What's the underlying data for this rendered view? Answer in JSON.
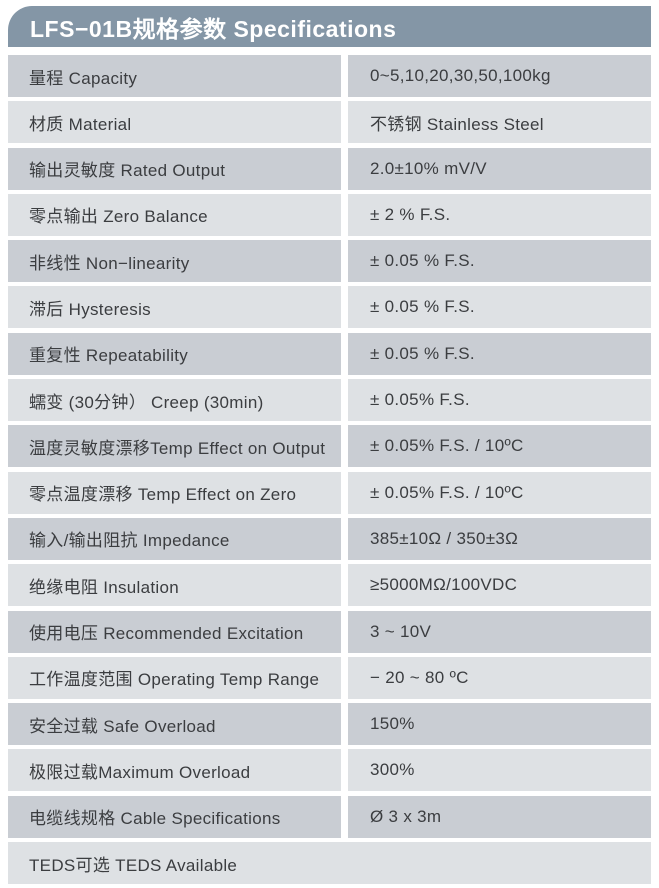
{
  "colors": {
    "page_bg": "#ffffff",
    "header_bg": "#8496a6",
    "header_text": "#ffffff",
    "row_dark": "#c9cdd3",
    "row_light": "#dee1e4",
    "text": "#3b3d40"
  },
  "header": {
    "title": "LFS−01B规格参数 Specifications"
  },
  "table": {
    "rows": [
      {
        "label": "量程 Capacity",
        "value": "0~5,10,20,30,50,100kg",
        "shade": "dark",
        "full_width": false
      },
      {
        "label": "材质 Material",
        "value": "不锈钢 Stainless Steel",
        "shade": "light",
        "full_width": false
      },
      {
        "label": "输出灵敏度 Rated Output",
        "value": "2.0±10% mV/V",
        "shade": "dark",
        "full_width": false
      },
      {
        "label": "零点输出  Zero Balance",
        "value": "± 2 % F.S.",
        "shade": "light",
        "full_width": false
      },
      {
        "label": "非线性 Non−linearity",
        "value": "± 0.05 % F.S.",
        "shade": "dark",
        "full_width": false
      },
      {
        "label": "滞后 Hysteresis",
        "value": "± 0.05 % F.S.",
        "shade": "light",
        "full_width": false
      },
      {
        "label": "重复性 Repeatability",
        "value": "± 0.05 % F.S.",
        "shade": "dark",
        "full_width": false
      },
      {
        "label": "蠕变 (30分钟） Creep (30min)",
        "value": "± 0.05% F.S.",
        "shade": "light",
        "full_width": false
      },
      {
        "label": "温度灵敏度漂移Temp Effect on Output",
        "value": "± 0.05% F.S. / 10ºC",
        "shade": "dark",
        "full_width": false
      },
      {
        "label": "零点温度漂移 Temp Effect on Zero",
        "value": "± 0.05% F.S. / 10ºC",
        "shade": "light",
        "full_width": false
      },
      {
        "label": "输入/输出阻抗 Impedance",
        "value": "385±10Ω / 350±3Ω",
        "shade": "dark",
        "full_width": false
      },
      {
        "label": "绝缘电阻  Insulation",
        "value": "≥5000MΩ/100VDC",
        "shade": "light",
        "full_width": false
      },
      {
        "label": "使用电压 Recommended Excitation",
        "value": "3 ~ 10V",
        "shade": "dark",
        "full_width": false
      },
      {
        "label": "工作温度范围 Operating Temp  Range",
        "value": "− 20 ~ 80 ºC",
        "shade": "light",
        "full_width": false
      },
      {
        "label": "安全过载 Safe Overload",
        "value": "150%",
        "shade": "dark",
        "full_width": false
      },
      {
        "label": "极限过载Maximum Overload",
        "value": "300%",
        "shade": "light",
        "full_width": false
      },
      {
        "label": "电缆线规格 Cable Specifications",
        "value": "Ø 3 x 3m",
        "shade": "dark",
        "full_width": false
      },
      {
        "label": "TEDS可选 TEDS Available",
        "value": "",
        "shade": "light",
        "full_width": true
      }
    ]
  }
}
